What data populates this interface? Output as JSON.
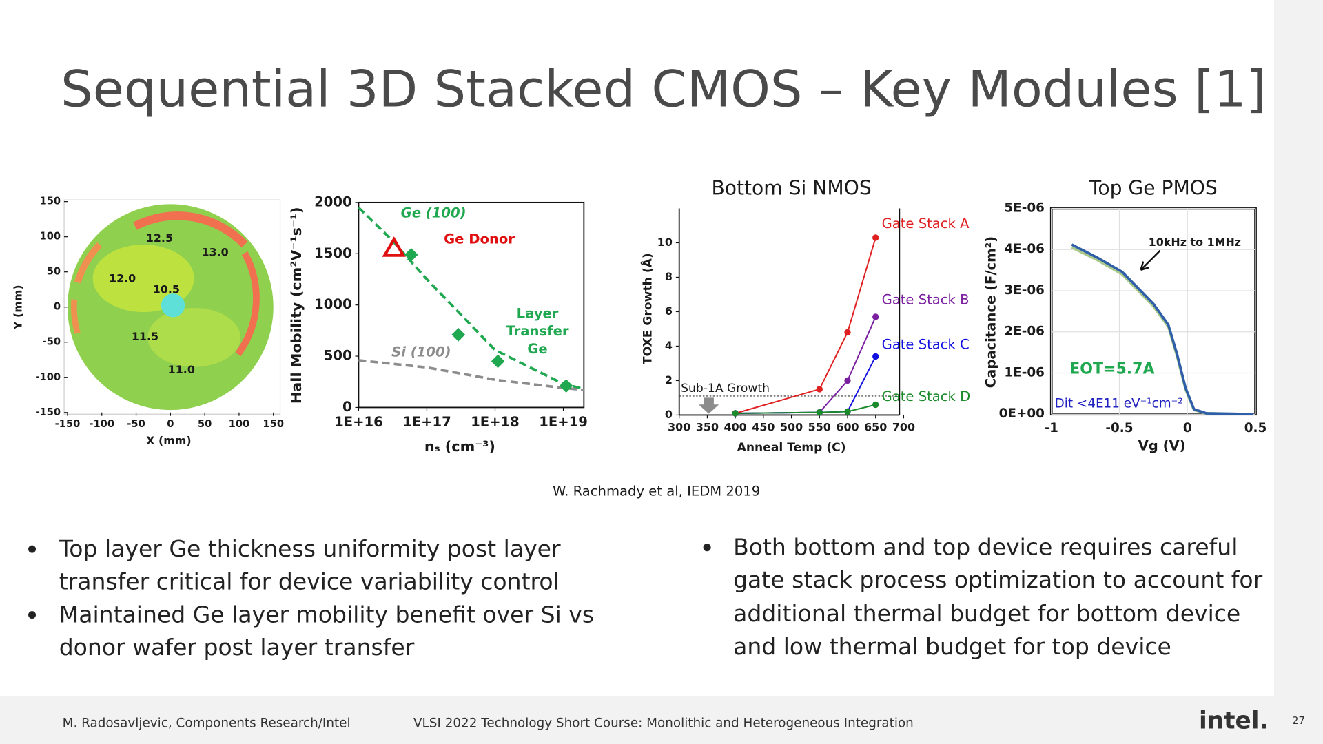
{
  "title": "Sequential 3D Stacked CMOS – Key Modules [1]",
  "citation": "W. Rachmady et al, IEDM 2019",
  "bullets_left": [
    [
      "Top layer Ge thickness uniformity post layer",
      "transfer critical for device variability control"
    ],
    [
      "Maintained Ge layer mobility benefit over Si vs",
      "donor wafer post layer transfer"
    ]
  ],
  "bullets_right": [
    [
      "Both bottom and top device requires careful",
      "gate stack process optimization to account for",
      "additional thermal budget for bottom device",
      "and low thermal budget for top device"
    ]
  ],
  "footer": {
    "author": "M. Radosavljevic, Components Research/Intel",
    "event": "VLSI 2022 Technology Short Course: Monolithic and Heterogeneous Integration",
    "logo": "intel.",
    "page": "27"
  },
  "chart_data": [
    {
      "type": "heatmap",
      "x_label": "X (mm)",
      "y_label": "Y (mm)",
      "xlim": [
        -150,
        150
      ],
      "ylim": [
        -150,
        150
      ],
      "xticks": [
        -150,
        -100,
        -50,
        0,
        50,
        100,
        150
      ],
      "yticks": [
        -150,
        -100,
        -50,
        0,
        50,
        100,
        150
      ],
      "annotations": [
        {
          "text": "12.5",
          "x": -16,
          "y": 97
        },
        {
          "text": "13.0",
          "x": 65,
          "y": 77
        },
        {
          "text": "12.0",
          "x": -70,
          "y": 40
        },
        {
          "text": "10.5",
          "x": -6,
          "y": 24
        },
        {
          "text": "11.5",
          "x": -37,
          "y": -43
        },
        {
          "text": "11.0",
          "x": 16,
          "y": -90
        }
      ]
    },
    {
      "type": "scatter",
      "x_label": "nₛ (cm⁻³)",
      "y_label": "Hall Mobility (cm²V⁻¹s⁻¹)",
      "xlog": true,
      "xlim": [
        1e+16,
        2e+19
      ],
      "ylim": [
        0,
        2000
      ],
      "xticks": [
        {
          "value": 1e+16,
          "label": "1E+16"
        },
        {
          "value": 1e+17,
          "label": "1E+17"
        },
        {
          "value": 1e+18,
          "label": "1E+18"
        },
        {
          "value": 1e+19,
          "label": "1E+19"
        }
      ],
      "yticks": [
        0,
        500,
        1000,
        1500,
        2000
      ],
      "series": [
        {
          "name": "Ge (100)",
          "color": "#1fa84f",
          "style": "dashed",
          "x": [
            1e+16,
            3e+16,
            1e+17,
            1e+18,
            1e+19,
            2e+19
          ],
          "values": [
            1950,
            1640,
            1250,
            560,
            230,
            180
          ]
        },
        {
          "name": "Si (100)",
          "color": "#8c8c8c",
          "style": "dashed",
          "x": [
            1e+16,
            1e+17,
            1e+18,
            1e+19,
            2e+19
          ],
          "values": [
            460,
            390,
            270,
            190,
            170
          ]
        },
        {
          "name": "Ge Donor",
          "color": "#e01010",
          "marker": "triangle",
          "x": [
            3.3e+16
          ],
          "values": [
            1550
          ]
        },
        {
          "name": "Layer Transfer Ge",
          "color": "#1fa84f",
          "marker": "diamond",
          "x": [
            5.9e+16,
            2.9e+17,
            1.1e+18,
            1.1e+19
          ],
          "values": [
            1490,
            710,
            450,
            210
          ]
        }
      ]
    },
    {
      "type": "line",
      "title": "Bottom Si NMOS",
      "x_label": "Anneal Temp (C)",
      "y_label": "TOXE Growth (Å)",
      "xlim": [
        300,
        700
      ],
      "ylim": [
        0,
        12
      ],
      "xticks": [
        300,
        350,
        400,
        450,
        500,
        550,
        600,
        650,
        700
      ],
      "yticks": [
        0,
        2,
        4,
        6,
        8,
        10
      ],
      "x": [
        400,
        550,
        600,
        650
      ],
      "series": [
        {
          "name": "Gate Stack A",
          "color": "#e02020",
          "values": [
            0.1,
            1.5,
            4.8,
            10.3
          ]
        },
        {
          "name": "Gate Stack B",
          "color": "#7a1fa0",
          "values": [
            0.1,
            0.15,
            2.0,
            5.7
          ]
        },
        {
          "name": "Gate Stack C",
          "color": "#1010e0",
          "values": [
            0.1,
            0.15,
            0.2,
            3.4
          ]
        },
        {
          "name": "Gate Stack D",
          "color": "#1a8a2a",
          "values": [
            0.1,
            0.15,
            0.2,
            0.6
          ]
        }
      ],
      "reference_line": {
        "label": "Sub-1A Growth",
        "value": 1.1
      }
    },
    {
      "type": "line",
      "title": "Top Ge PMOS",
      "x_label": "Vg (V)",
      "y_label": "Capacitance (F/cm²)",
      "grid": true,
      "xlim": [
        -1,
        0.5
      ],
      "ylim": [
        0,
        5e-06
      ],
      "xticks": [
        -1,
        -0.5,
        0,
        0.5
      ],
      "yticks": [
        {
          "value": 0,
          "label": "0E+00"
        },
        {
          "value": 1e-06,
          "label": "1E-06"
        },
        {
          "value": 2e-06,
          "label": "2E-06"
        },
        {
          "value": 3e-06,
          "label": "3E-06"
        },
        {
          "value": 4e-06,
          "label": "4E-06"
        },
        {
          "value": 5e-06,
          "label": "5E-06"
        }
      ],
      "x": [
        -0.85,
        -0.665,
        -0.48,
        -0.25,
        -0.14,
        -0.076,
        -0.014,
        0.048,
        0.14,
        0.48
      ],
      "series": [
        {
          "color": "#a9c98a",
          "values": [
            4.05e-06,
            3.75e-06,
            3.4e-06,
            2.62e-06,
            2.12e-06,
            1.4e-06,
            6e-07,
            1e-07,
            2e-08,
            0
          ]
        },
        {
          "color": "#2e5fa8",
          "values": [
            4.12e-06,
            3.81e-06,
            3.46e-06,
            2.68e-06,
            2.17e-06,
            1.45e-06,
            6.4e-07,
            1.2e-07,
            2e-08,
            0
          ]
        }
      ],
      "annotations": [
        {
          "text": "10kHz to 1MHz"
        },
        {
          "text": "EOT=5.7A"
        },
        {
          "text": "Dit <4E11 eV⁻¹cm⁻²"
        }
      ]
    }
  ]
}
